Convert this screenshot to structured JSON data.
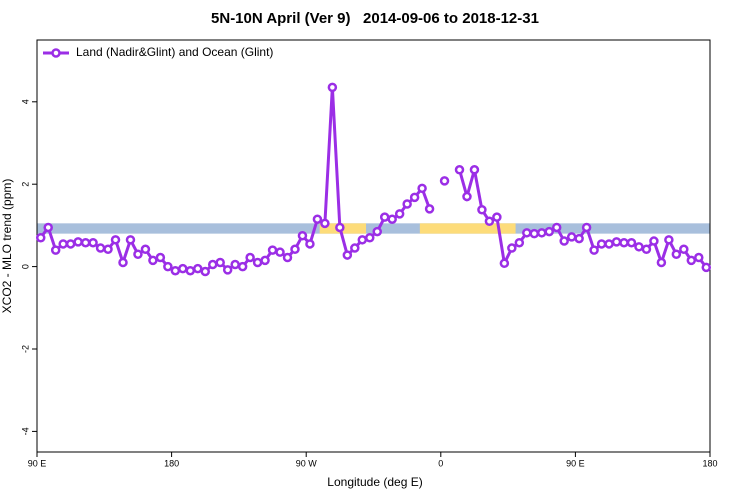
{
  "chart_data": {
    "type": "line",
    "title": "5N-10N April (Ver 9)   2014-09-06 to 2018-12-31",
    "xlabel": "Longitude (deg E)",
    "ylabel": "XCO2 - MLO trend (ppm)",
    "xlim": [
      90,
      540
    ],
    "xticks": [
      {
        "value": 90,
        "label": "90 E"
      },
      180,
      {
        "value": 270,
        "label": "90 W"
      },
      {
        "value": 360,
        "label": "0"
      },
      {
        "value": 450,
        "label": "90 E"
      },
      {
        "value": 540,
        "label": "180"
      }
    ],
    "ylim": [
      -4.5,
      5.5
    ],
    "yticks": [
      -4,
      -2,
      0,
      2,
      4
    ],
    "legend": "top-left",
    "band": {
      "ylim": [
        0.8,
        1.05
      ],
      "color": "#a8bfdc",
      "segments": [
        {
          "xlim": [
            279,
            310
          ],
          "color": "#fddc7a"
        },
        {
          "xlim": [
            346,
            410
          ],
          "color": "#fddc7a"
        }
      ]
    },
    "x": [
      92.5,
      97.5,
      102.5,
      107.5,
      112.5,
      117.5,
      122.5,
      127.5,
      132.5,
      137.5,
      142.5,
      147.5,
      152.5,
      157.5,
      162.5,
      167.5,
      172.5,
      177.5,
      182.5,
      187.5,
      192.5,
      197.5,
      202.5,
      207.5,
      212.5,
      217.5,
      222.5,
      227.5,
      232.5,
      237.5,
      242.5,
      247.5,
      252.5,
      257.5,
      262.5,
      267.5,
      272.5,
      277.5,
      282.5,
      287.5,
      292.5,
      297.5,
      302.5,
      307.5,
      312.5,
      317.5,
      322.5,
      327.5,
      332.5,
      337.5,
      342.5,
      347.5,
      352.5,
      357.5,
      362.5,
      367.5,
      372.5,
      377.5,
      382.5,
      387.5,
      392.5,
      397.5,
      402.5,
      407.5,
      412.5,
      417.5,
      422.5,
      427.5,
      432.5,
      437.5,
      442.5,
      447.5,
      452.5,
      457.5,
      462.5,
      467.5,
      472.5,
      477.5,
      482.5,
      487.5,
      492.5,
      497.5,
      502.5,
      507.5,
      512.5,
      517.5,
      522.5,
      527.5,
      532.5,
      537.5
    ],
    "series": [
      {
        "name": "Land (Nadir&Glint) and Ocean (Glint)",
        "color": "#9b2ee6",
        "values": [
          0.7,
          0.95,
          0.4,
          0.55,
          0.55,
          0.6,
          0.58,
          0.58,
          0.45,
          0.42,
          0.65,
          0.1,
          0.65,
          0.3,
          0.42,
          0.15,
          0.22,
          0.0,
          -0.1,
          -0.05,
          -0.1,
          -0.05,
          -0.12,
          0.05,
          0.1,
          -0.08,
          0.05,
          0.0,
          0.22,
          0.1,
          0.15,
          0.4,
          0.35,
          0.22,
          0.42,
          0.75,
          0.55,
          1.15,
          1.05,
          4.35,
          0.95,
          0.28,
          0.45,
          0.65,
          0.7,
          0.85,
          1.2,
          1.15,
          1.28,
          1.52,
          1.68,
          1.9,
          1.4,
          null,
          2.08,
          null,
          2.35,
          1.7,
          2.35,
          1.38,
          1.1,
          1.2,
          0.08,
          0.45,
          0.58,
          0.82,
          0.8,
          0.82,
          0.85,
          0.95,
          0.62,
          0.72,
          0.68,
          0.95,
          0.4,
          0.55,
          0.55,
          0.6,
          0.58,
          0.58,
          0.48,
          0.42,
          0.62,
          0.1,
          0.65,
          0.3,
          0.42,
          0.15,
          0.22,
          -0.02
        ]
      }
    ]
  }
}
